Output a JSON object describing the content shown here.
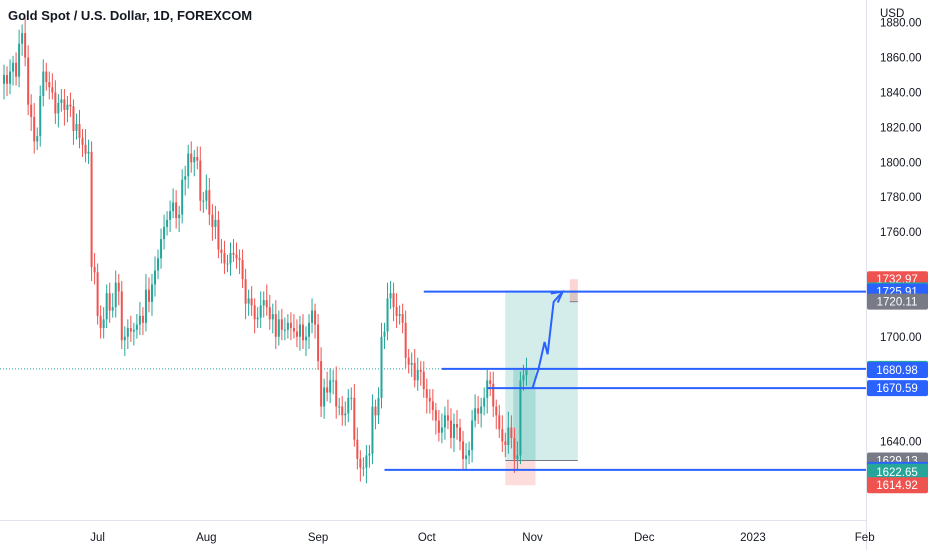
{
  "chart_data": {
    "type": "candlestick",
    "title": "Gold Spot / U.S. Dollar, 1D, FOREXCOM",
    "currency": "USD",
    "ylim": [
      1595,
      1893
    ],
    "y_ticks": [
      "1880.00",
      "1860.00",
      "1840.00",
      "1820.00",
      "1800.00",
      "1780.00",
      "1760.00",
      "1700.00",
      "1640.00"
    ],
    "x_ticks": [
      {
        "label": "Jul",
        "index": 31
      },
      {
        "label": "Aug",
        "index": 67
      },
      {
        "label": "Sep",
        "index": 104
      },
      {
        "label": "Oct",
        "index": 140
      },
      {
        "label": "Nov",
        "index": 175
      },
      {
        "label": "Dec",
        "index": 212
      },
      {
        "label": "2023",
        "index": 248
      },
      {
        "label": "Feb",
        "index": 285
      }
    ],
    "colors": {
      "up": "#26a69a",
      "down": "#ef5350",
      "line": "#2962ff"
    },
    "closes": [
      1850,
      1845,
      1852,
      1857,
      1849,
      1868,
      1874,
      1860,
      1833,
      1826,
      1812,
      1815,
      1838,
      1852,
      1846,
      1843,
      1840,
      1828,
      1834,
      1836,
      1830,
      1833,
      1832,
      1818,
      1822,
      1814,
      1810,
      1805,
      1806,
      1740,
      1737,
      1712,
      1705,
      1710,
      1725,
      1715,
      1717,
      1731,
      1726,
      1698,
      1700,
      1705,
      1703,
      1704,
      1707,
      1712,
      1708,
      1727,
      1720,
      1730,
      1738,
      1745,
      1756,
      1763,
      1767,
      1772,
      1777,
      1768,
      1770,
      1790,
      1792,
      1805,
      1800,
      1803,
      1801,
      1778,
      1778,
      1784,
      1770,
      1763,
      1767,
      1750,
      1748,
      1742,
      1742,
      1748,
      1747,
      1745,
      1744,
      1733,
      1719,
      1722,
      1718,
      1710,
      1711,
      1718,
      1721,
      1717,
      1710,
      1713,
      1700,
      1710,
      1704,
      1704,
      1708,
      1705,
      1703,
      1700,
      1707,
      1698,
      1700,
      1708,
      1715,
      1707,
      1686,
      1660,
      1671,
      1668,
      1675,
      1675,
      1660,
      1660,
      1655,
      1656,
      1665,
      1665,
      1641,
      1630,
      1625,
      1625,
      1632,
      1633,
      1660,
      1655,
      1665,
      1700,
      1703,
      1722,
      1725,
      1717,
      1712,
      1713,
      1708,
      1688,
      1684,
      1685,
      1675,
      1681,
      1680,
      1670,
      1665,
      1663,
      1658,
      1652,
      1645,
      1648,
      1655,
      1652,
      1642,
      1650,
      1648,
      1640,
      1630,
      1632,
      1635,
      1652,
      1659,
      1656,
      1660,
      1665,
      1675,
      1673,
      1660,
      1655,
      1647,
      1640,
      1638,
      1648,
      1642,
      1630,
      1632,
      1675,
      1678,
      1681
    ],
    "lines": [
      {
        "name": "1725.91",
        "value": 1725.91,
        "from_index": 139,
        "to_index": 230
      },
      {
        "name": "1681.58",
        "value": 1681.58,
        "from_index": 145,
        "to_index": 230
      },
      {
        "name": "1670.59",
        "value": 1670.59,
        "from_index": 160,
        "to_index": 230
      },
      {
        "name": "1623.71",
        "value": 1623.71,
        "from_index": 126,
        "to_index": 230
      }
    ],
    "position": {
      "start_index": 166,
      "end_index": 190,
      "entry": 1629.13,
      "stop": 1614.92,
      "target": 1726.59,
      "target_top": 1732.97,
      "exit": 1720.11
    },
    "projection": [
      {
        "index": 175,
        "value": 1670.59
      },
      {
        "index": 177,
        "value": 1681.58
      },
      {
        "index": 179,
        "value": 1697
      },
      {
        "index": 180,
        "value": 1690
      },
      {
        "index": 182,
        "value": 1720
      },
      {
        "index": 185,
        "value": 1725.91
      }
    ],
    "last_price_line": 1681.58,
    "price_tags": [
      {
        "label": "1732.97",
        "value": 1732.97,
        "color": "#ef5350"
      },
      {
        "label": "1726.59",
        "value": 1726.59,
        "color": "#26a69a"
      },
      {
        "label": "1725.91",
        "value": 1725.91,
        "color": "#2962ff"
      },
      {
        "label": "1720.11",
        "value": 1720.11,
        "color": "#787b86"
      },
      {
        "label": "1681.58",
        "value": 1681.58,
        "color": "#26a69a"
      },
      {
        "label": "1680.98",
        "value": 1680.98,
        "color": "#2962ff"
      },
      {
        "label": "1670.59",
        "value": 1670.59,
        "color": "#2962ff"
      },
      {
        "label": "1629.13",
        "value": 1629.13,
        "color": "#787b86"
      },
      {
        "label": "1623.71",
        "value": 1623.71,
        "color": "#2962ff"
      },
      {
        "label": "1622.65",
        "value": 1622.65,
        "color": "#26a69a"
      },
      {
        "label": "1614.92",
        "value": 1614.92,
        "color": "#ef5350"
      }
    ]
  }
}
